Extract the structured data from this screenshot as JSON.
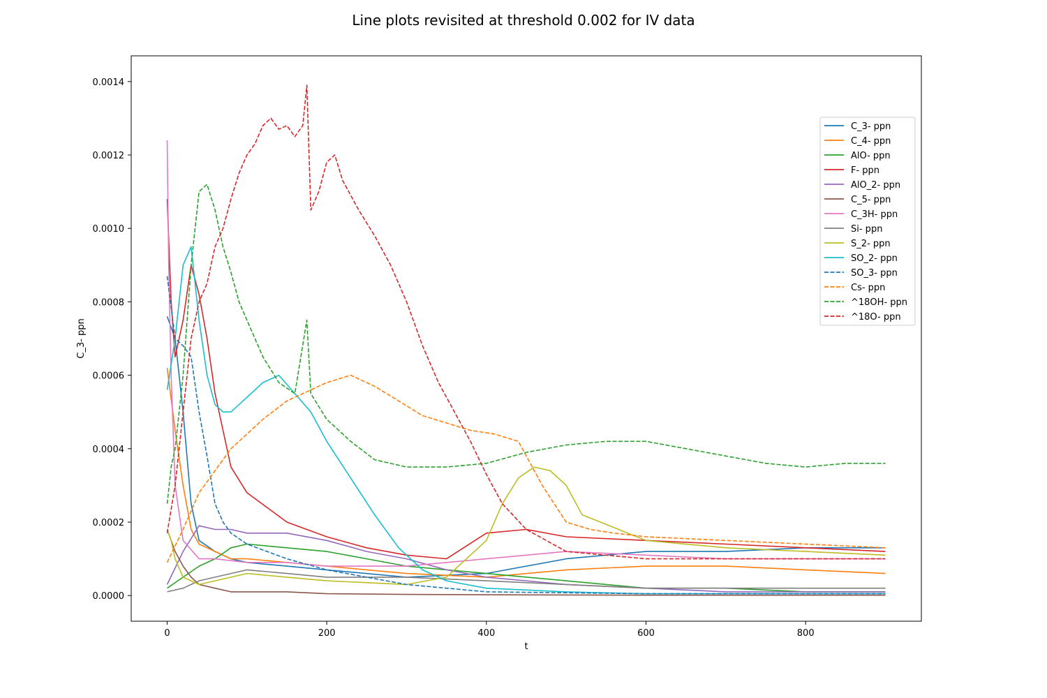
{
  "chart_data": {
    "type": "line",
    "title": "Line plots revisited at threshold 0.002 for IV data",
    "xlabel": "t",
    "ylabel": "C_3- ppn",
    "xlim": [
      -45,
      945
    ],
    "ylim": [
      -7e-05,
      0.00147
    ],
    "xticks": [
      0,
      200,
      400,
      600,
      800
    ],
    "xtick_labels": [
      "0",
      "200",
      "400",
      "600",
      "800"
    ],
    "yticks": [
      0,
      0.0002,
      0.0004,
      0.0006,
      0.0008,
      0.001,
      0.0012,
      0.0014
    ],
    "ytick_labels": [
      "0.0000",
      "0.0002",
      "0.0004",
      "0.0006",
      "0.0008",
      "0.0010",
      "0.0012",
      "0.0014"
    ],
    "grid": false,
    "legend_position": "upper right",
    "series": [
      {
        "name": "C_3- ppn",
        "color": "#1f77b4",
        "dash": false,
        "x": [
          0,
          10,
          20,
          30,
          40,
          60,
          80,
          100,
          150,
          200,
          300,
          400,
          500,
          600,
          700,
          800,
          900
        ],
        "values": [
          0.00076,
          0.0007,
          0.0005,
          0.00025,
          0.00015,
          0.00012,
          0.0001,
          9e-05,
          8e-05,
          7e-05,
          5e-05,
          6e-05,
          0.0001,
          0.00012,
          0.00012,
          0.00013,
          0.00013
        ]
      },
      {
        "name": "C_4- ppn",
        "color": "#ff7f0e",
        "dash": false,
        "x": [
          0,
          10,
          20,
          30,
          40,
          60,
          80,
          100,
          150,
          200,
          300,
          400,
          500,
          600,
          700,
          800,
          900
        ],
        "values": [
          0.00062,
          0.00045,
          0.0003,
          0.00018,
          0.00014,
          0.00012,
          0.0001,
          0.0001,
          9e-05,
          8e-05,
          6e-05,
          5e-05,
          7e-05,
          8e-05,
          8e-05,
          7e-05,
          6e-05
        ]
      },
      {
        "name": "AlO- ppn",
        "color": "#2ca02c",
        "dash": false,
        "x": [
          0,
          20,
          40,
          60,
          80,
          100,
          150,
          200,
          250,
          300,
          400,
          500,
          600,
          700,
          800,
          900
        ],
        "values": [
          2e-05,
          5e-05,
          8e-05,
          0.0001,
          0.00013,
          0.00014,
          0.00013,
          0.00012,
          0.0001,
          8e-05,
          6e-05,
          4e-05,
          2e-05,
          2e-05,
          1e-05,
          1e-05
        ]
      },
      {
        "name": "F- ppn",
        "color": "#d62728",
        "dash": false,
        "x": [
          0,
          5,
          10,
          20,
          30,
          40,
          50,
          60,
          70,
          80,
          100,
          150,
          200,
          250,
          300,
          350,
          400,
          450,
          500,
          600,
          700,
          800,
          900
        ],
        "values": [
          0.00108,
          0.0008,
          0.00065,
          0.00075,
          0.0009,
          0.00082,
          0.0007,
          0.00055,
          0.00045,
          0.00035,
          0.00028,
          0.0002,
          0.00016,
          0.00013,
          0.00011,
          0.0001,
          0.00017,
          0.00018,
          0.00016,
          0.00015,
          0.00014,
          0.00013,
          0.00012
        ]
      },
      {
        "name": "AlO_2- ppn",
        "color": "#9467bd",
        "dash": false,
        "x": [
          0,
          20,
          40,
          60,
          80,
          100,
          150,
          200,
          250,
          300,
          350,
          400,
          500,
          600,
          700,
          800,
          900
        ],
        "values": [
          3e-05,
          0.00012,
          0.00019,
          0.00018,
          0.00018,
          0.00017,
          0.00017,
          0.00015,
          0.00012,
          0.0001,
          7e-05,
          5e-05,
          3e-05,
          2e-05,
          1e-05,
          1e-05,
          1e-05
        ]
      },
      {
        "name": "C_5- ppn",
        "color": "#8c564b",
        "dash": false,
        "x": [
          0,
          10,
          20,
          30,
          40,
          60,
          80,
          100,
          150,
          200,
          300,
          400,
          600,
          900
        ],
        "values": [
          0.00018,
          0.00012,
          8e-05,
          5e-05,
          3e-05,
          2e-05,
          1e-05,
          1e-05,
          1e-05,
          5e-06,
          3e-06,
          2e-06,
          1e-06,
          1e-06
        ]
      },
      {
        "name": "C_3H- ppn",
        "color": "#e377c2",
        "dash": false,
        "x": [
          0,
          2,
          5,
          10,
          20,
          40,
          60,
          100,
          150,
          200,
          300,
          400,
          500,
          600,
          700,
          800,
          900
        ],
        "values": [
          0.00124,
          0.0009,
          0.0006,
          0.0003,
          0.00015,
          0.0001,
          0.0001,
          9e-05,
          9e-05,
          8e-05,
          8e-05,
          0.0001,
          0.00012,
          0.00011,
          0.0001,
          0.0001,
          0.0001
        ]
      },
      {
        "name": "Si- ppn",
        "color": "#7f7f7f",
        "dash": false,
        "x": [
          0,
          20,
          40,
          60,
          80,
          100,
          150,
          200,
          250,
          300,
          400,
          500,
          600,
          700,
          800,
          900
        ],
        "values": [
          1e-05,
          2e-05,
          4e-05,
          5e-05,
          6e-05,
          7e-05,
          6e-05,
          5e-05,
          5e-05,
          5e-05,
          4e-05,
          3e-05,
          2e-05,
          2e-05,
          2e-05,
          2e-05
        ]
      },
      {
        "name": "S_2- ppn",
        "color": "#bcbd22",
        "dash": false,
        "x": [
          0,
          5,
          10,
          20,
          40,
          60,
          100,
          150,
          200,
          300,
          350,
          400,
          420,
          440,
          460,
          480,
          500,
          520,
          600,
          700,
          800,
          900
        ],
        "values": [
          0.00018,
          0.00015,
          0.0001,
          5e-05,
          3e-05,
          4e-05,
          6e-05,
          5e-05,
          4e-05,
          3e-05,
          5e-05,
          0.00015,
          0.00025,
          0.00032,
          0.00035,
          0.00034,
          0.0003,
          0.00022,
          0.00015,
          0.00013,
          0.00012,
          0.00011
        ]
      },
      {
        "name": "SO_2- ppn",
        "color": "#17becf",
        "dash": false,
        "x": [
          0,
          10,
          20,
          30,
          40,
          50,
          60,
          70,
          80,
          100,
          120,
          140,
          160,
          180,
          200,
          230,
          260,
          290,
          320,
          350,
          400,
          500,
          600,
          700,
          800,
          900
        ],
        "values": [
          0.00056,
          0.0007,
          0.0009,
          0.00095,
          0.00075,
          0.0006,
          0.00052,
          0.0005,
          0.0005,
          0.00054,
          0.00058,
          0.0006,
          0.00055,
          0.0005,
          0.00042,
          0.00032,
          0.00022,
          0.00013,
          7e-05,
          4e-05,
          2e-05,
          1e-05,
          5e-06,
          5e-06,
          5e-06,
          5e-06
        ]
      },
      {
        "name": "SO_3- ppn",
        "color": "#1f77b4",
        "dash": true,
        "x": [
          0,
          10,
          20,
          30,
          40,
          50,
          60,
          70,
          80,
          100,
          150,
          200,
          300,
          400,
          600,
          900
        ],
        "values": [
          0.00087,
          0.0007,
          0.00068,
          0.00065,
          0.0005,
          0.00038,
          0.00025,
          0.0002,
          0.00017,
          0.00014,
          0.0001,
          7e-05,
          3e-05,
          1e-05,
          5e-06,
          5e-06
        ]
      },
      {
        "name": "Cs- ppn",
        "color": "#ff7f0e",
        "dash": true,
        "x": [
          0,
          20,
          40,
          60,
          80,
          100,
          120,
          150,
          180,
          200,
          230,
          260,
          290,
          320,
          350,
          380,
          410,
          440,
          470,
          500,
          530,
          560,
          600,
          700,
          800,
          900
        ],
        "values": [
          9e-05,
          0.00018,
          0.00028,
          0.00034,
          0.0004,
          0.00044,
          0.00048,
          0.00053,
          0.00056,
          0.00058,
          0.0006,
          0.00057,
          0.00053,
          0.00049,
          0.00047,
          0.00045,
          0.00044,
          0.00042,
          0.0003,
          0.0002,
          0.00018,
          0.00017,
          0.00016,
          0.00015,
          0.00014,
          0.00013
        ]
      },
      {
        "name": "^18OH- ppn",
        "color": "#2ca02c",
        "dash": true,
        "x": [
          0,
          5,
          10,
          20,
          30,
          40,
          50,
          60,
          70,
          80,
          90,
          100,
          120,
          140,
          160,
          175,
          180,
          200,
          230,
          260,
          300,
          350,
          400,
          450,
          500,
          550,
          600,
          650,
          700,
          750,
          800,
          850,
          900
        ],
        "values": [
          0.00025,
          0.00035,
          0.0004,
          0.0006,
          0.0009,
          0.0011,
          0.00112,
          0.00105,
          0.00095,
          0.00088,
          0.0008,
          0.00075,
          0.00065,
          0.00058,
          0.00055,
          0.00075,
          0.00055,
          0.00048,
          0.00042,
          0.00037,
          0.00035,
          0.00035,
          0.00036,
          0.00039,
          0.00041,
          0.00042,
          0.00042,
          0.0004,
          0.00038,
          0.00036,
          0.00035,
          0.00036,
          0.00036
        ]
      },
      {
        "name": "^18O- ppn",
        "color": "#d62728",
        "dash": true,
        "x": [
          0,
          10,
          20,
          30,
          40,
          50,
          60,
          70,
          80,
          90,
          100,
          110,
          120,
          130,
          140,
          150,
          160,
          170,
          175,
          180,
          190,
          200,
          210,
          220,
          240,
          260,
          280,
          300,
          320,
          340,
          360,
          380,
          400,
          420,
          450,
          500,
          600,
          700,
          800,
          900
        ],
        "values": [
          0.00017,
          0.0003,
          0.0005,
          0.0007,
          0.0008,
          0.00085,
          0.00095,
          0.001,
          0.00108,
          0.00115,
          0.0012,
          0.00123,
          0.00128,
          0.0013,
          0.00127,
          0.00128,
          0.00125,
          0.00128,
          0.00139,
          0.00105,
          0.0011,
          0.00118,
          0.0012,
          0.00113,
          0.00105,
          0.00098,
          0.0009,
          0.0008,
          0.00068,
          0.00058,
          0.0005,
          0.00042,
          0.00033,
          0.00025,
          0.00018,
          0.00012,
          0.0001,
          0.0001,
          0.0001,
          0.0001
        ]
      }
    ]
  }
}
